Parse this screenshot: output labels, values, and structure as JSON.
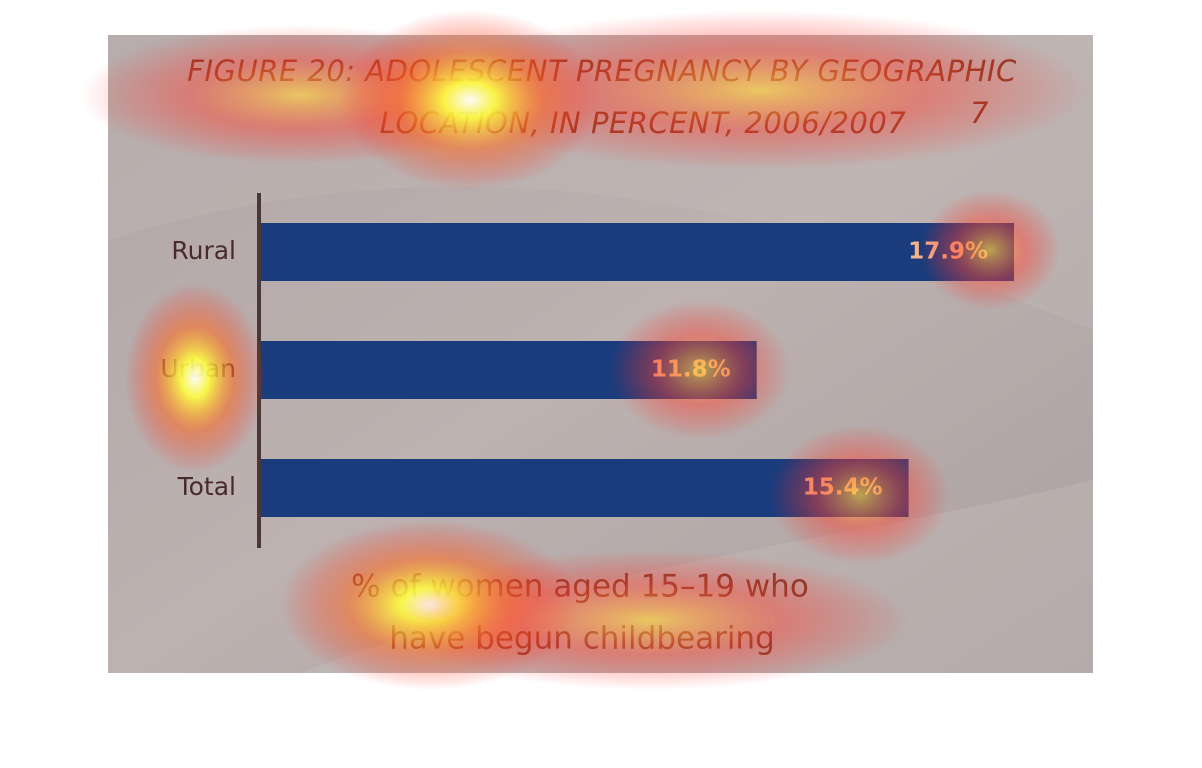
{
  "chart_data": {
    "type": "bar",
    "orientation": "horizontal",
    "title": [
      "FIGURE 20: ADOLESCENT PREGNANCY BY GEOGRAPHIC",
      "LOCATION, IN PERCENT, 2006/2007"
    ],
    "title_note": "7",
    "categories": [
      "Rural",
      "Urban",
      "Total"
    ],
    "values": [
      17.9,
      11.8,
      15.4
    ],
    "value_labels": [
      "17.9%",
      "11.8%",
      "15.4%"
    ],
    "color": "#1b3c7c",
    "x_label": [
      "% of women aged 15–19 who",
      "have begun childbearing"
    ]
  }
}
